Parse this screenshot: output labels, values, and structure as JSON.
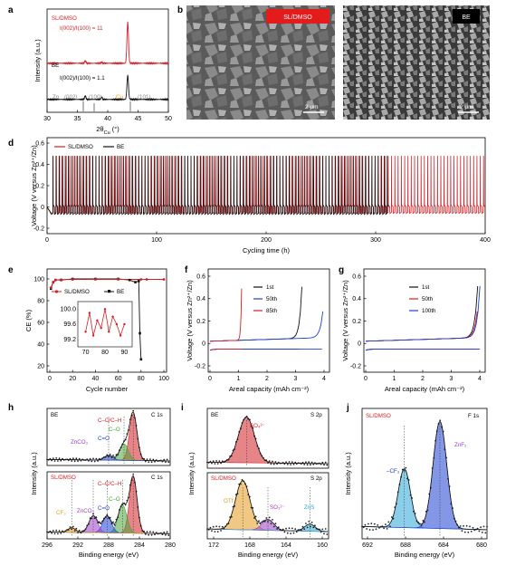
{
  "colors": {
    "sl": "#d41f26",
    "be": "#111111",
    "blue": "#1f3fd1",
    "green": "#4aa63a",
    "purple": "#9b3fc2",
    "orange": "#e49b1f",
    "cyan": "#2aa6d8",
    "gray": "#8a8a8a"
  },
  "panels": {
    "a": {
      "letter": "a",
      "ylabel": "Intensity (a.u.)",
      "xlabel": "2θ",
      "xlabel_sub": "Cu",
      "xlabel_unit": " (°)",
      "xticks": [
        "30",
        "35",
        "40",
        "45",
        "50"
      ],
      "sl": {
        "name": "SL/DMSO",
        "ratio": "I(002)/I(100) = 11"
      },
      "be": {
        "name": "BE",
        "ratio": "I(002)/I(100) = 1.1"
      },
      "zn_ref": {
        "label": "Zn",
        "planes": [
          "(002)",
          "(100)",
          "(101)"
        ]
      },
      "cu_ref": {
        "label": "Cu"
      }
    },
    "b": {
      "letter": "b",
      "badge": "SL/DMSO",
      "scale": "2 μm"
    },
    "c": {
      "letter": "c",
      "badge": "BE",
      "scale": "2 μm"
    },
    "d": {
      "letter": "d",
      "ylabel": "Voltage (V versus Zn²⁺/Zn)",
      "xlabel": "Cycling time (h)",
      "xticks": [
        "0",
        "100",
        "200",
        "300",
        "400"
      ],
      "yticks": [
        "-0.2",
        "0",
        "0.2",
        "0.4",
        "0.6"
      ],
      "legend": [
        "SL/DMSO",
        "BE"
      ]
    },
    "e": {
      "letter": "e",
      "ylabel": "CE (%)",
      "xlabel": "Cycle number",
      "xticks": [
        "0",
        "20",
        "40",
        "60",
        "80",
        "100"
      ],
      "yticks": [
        "20",
        "40",
        "60",
        "80",
        "100"
      ],
      "legend": [
        "SL/DMSO",
        "BE"
      ],
      "inset": {
        "yticks": [
          "99.2",
          "99.6",
          "100.0"
        ],
        "xticks": [
          "70",
          "80",
          "90"
        ]
      }
    },
    "f": {
      "letter": "f",
      "ylabel": "Voltage (V versus Zn²⁺/Zn)",
      "xlabel": "Areal capacity (mAh cm⁻²)",
      "xticks": [
        "0",
        "1",
        "2",
        "3",
        "4"
      ],
      "yticks": [
        "-0.2",
        "0",
        "0.2",
        "0.4",
        "0.6"
      ],
      "legend": [
        "1st",
        "50th",
        "85th"
      ]
    },
    "g": {
      "letter": "g",
      "ylabel": "Voltage (V versus Zn²⁺/Zn)",
      "xlabel": "Areal capacity (mAh cm⁻²)",
      "xticks": [
        "0",
        "1",
        "2",
        "3",
        "4"
      ],
      "yticks": [
        "-0.2",
        "0",
        "0.2",
        "0.4",
        "0.6"
      ],
      "legend": [
        "1st",
        "50th",
        "100th"
      ]
    },
    "h": {
      "letter": "h",
      "ylabel": "Intensity (a.u.)",
      "xlabel": "Binding energy (eV)",
      "xticks": [
        "296",
        "292",
        "288",
        "284",
        "280"
      ],
      "top": {
        "name": "BE",
        "core": "C 1s",
        "peaks": [
          "C–C/C–H",
          "C–O",
          "C=O",
          "ZnCO₃"
        ]
      },
      "bottom": {
        "name": "SL/DMSO",
        "core": "C 1s",
        "peaks": [
          "C–C/C–H",
          "C–O",
          "C=O",
          "ZnCO₃",
          "CF₃"
        ]
      }
    },
    "i": {
      "letter": "i",
      "ylabel": "Intensity (a.u.)",
      "xlabel": "Binding energy (eV)",
      "xticks": [
        "172",
        "168",
        "164",
        "160"
      ],
      "top": {
        "name": "BE",
        "core": "S 2p",
        "peaks": [
          "SO₄²⁻"
        ]
      },
      "bottom": {
        "name": "SL/DMSO",
        "core": "S 2p",
        "peaks": [
          "OTf⁻",
          "SO₃²⁻",
          "ZnS"
        ]
      }
    },
    "j": {
      "letter": "j",
      "ylabel": "Intensity (a.u.)",
      "xlabel": "Binding energy (eV)",
      "xticks": [
        "692",
        "688",
        "684",
        "680"
      ],
      "name": "SL/DMSO",
      "core": "F 1s",
      "peaks": [
        "–CF₃",
        "ZnF₂"
      ]
    }
  },
  "chart_data": [
    {
      "type": "line",
      "panel": "a",
      "x_range": [
        30,
        50
      ],
      "series": [
        {
          "name": "SL/DMSO",
          "x": [
            30,
            36.3,
            39.0,
            43.3,
            50
          ],
          "y": [
            0.95,
            1.0,
            0.97,
            1.75,
            0.95
          ]
        },
        {
          "name": "BE",
          "x": [
            30,
            36.3,
            39.0,
            43.3,
            50
          ],
          "y": [
            0.25,
            0.32,
            0.29,
            0.72,
            0.25
          ]
        }
      ]
    },
    {
      "type": "line",
      "panel": "d",
      "xlim": [
        0,
        400
      ],
      "ylim": [
        -0.2,
        0.6
      ],
      "series": [
        {
          "name": "SL/DMSO",
          "t_end": 400,
          "v_high": 0.48,
          "v_low": -0.06
        },
        {
          "name": "BE",
          "t_end": 310,
          "v_high": 0.48,
          "v_low": -0.07
        }
      ]
    },
    {
      "type": "line",
      "panel": "e",
      "xlim": [
        0,
        100
      ],
      "ylim": [
        20,
        100
      ],
      "series": [
        {
          "name": "SL/DMSO",
          "x": [
            1,
            3,
            5,
            10,
            20,
            40,
            60,
            80,
            85,
            100
          ],
          "y": [
            92,
            97,
            99,
            99.4,
            99.5,
            99.6,
            99.6,
            99.6,
            99.6,
            99.6
          ]
        },
        {
          "name": "BE",
          "x": [
            1,
            3,
            5,
            10,
            20,
            40,
            60,
            70,
            75,
            78,
            79,
            80
          ],
          "y": [
            91,
            97,
            99,
            99,
            100,
            100,
            100,
            99,
            97,
            98,
            50,
            26
          ]
        },
        {
          "name": "SL/DMSO inset",
          "x": [
            70,
            72,
            74,
            76,
            78,
            80,
            82,
            84,
            86,
            88,
            90
          ],
          "y": [
            99.4,
            99.9,
            99.3,
            99.7,
            99.5,
            100.0,
            99.4,
            99.8,
            99.6,
            99.3,
            99.6
          ]
        }
      ]
    },
    {
      "type": "line",
      "panel": "f",
      "xlim": [
        0,
        4.1
      ],
      "ylim": [
        -0.2,
        0.6
      ],
      "series": [
        {
          "name": "1st",
          "capacity": 3.2
        },
        {
          "name": "50th",
          "capacity": 4.0
        },
        {
          "name": "85th",
          "capacity": 1.1
        }
      ]
    },
    {
      "type": "line",
      "panel": "g",
      "xlim": [
        0,
        4.1
      ],
      "ylim": [
        -0.2,
        0.6
      ],
      "series": [
        {
          "name": "1st",
          "capacity": 3.9
        },
        {
          "name": "50th",
          "capacity": 3.95
        },
        {
          "name": "100th",
          "capacity": 3.98
        }
      ]
    },
    {
      "type": "line",
      "panel": "h",
      "xlim": [
        296,
        280
      ],
      "series": [
        {
          "name": "BE C–C/C–H",
          "center": 284.8,
          "height": 1.0
        },
        {
          "name": "BE C–O",
          "center": 286.0,
          "height": 0.35
        },
        {
          "name": "BE C=O",
          "center": 288.0,
          "height": 0.1
        },
        {
          "name": "SL/DMSO C–C/C–H",
          "center": 284.8,
          "height": 1.0
        },
        {
          "name": "SL/DMSO C–O",
          "center": 286.2,
          "height": 0.5
        },
        {
          "name": "SL/DMSO C=O",
          "center": 288.2,
          "height": 0.3
        },
        {
          "name": "SL/DMSO ZnCO₃",
          "center": 290.0,
          "height": 0.3
        },
        {
          "name": "SL/DMSO CF₃",
          "center": 292.8,
          "height": 0.08
        }
      ]
    },
    {
      "type": "line",
      "panel": "i",
      "xlim": [
        173,
        160
      ],
      "series": [
        {
          "name": "BE SO₄²⁻",
          "center": 168.8,
          "height": 1.0
        },
        {
          "name": "SL/DMSO OTf⁻",
          "center": 169.2,
          "height": 0.55
        },
        {
          "name": "SL/DMSO SO₃²⁻",
          "center": 166.5,
          "height": 0.12
        },
        {
          "name": "SL/DMSO ZnS",
          "center": 162.0,
          "height": 0.08
        }
      ]
    },
    {
      "type": "line",
      "panel": "j",
      "xlim": [
        692,
        680
      ],
      "series": [
        {
          "name": "–CF₃",
          "center": 688.6,
          "height": 0.55
        },
        {
          "name": "ZnF₂",
          "center": 684.9,
          "height": 1.0
        }
      ]
    }
  ]
}
